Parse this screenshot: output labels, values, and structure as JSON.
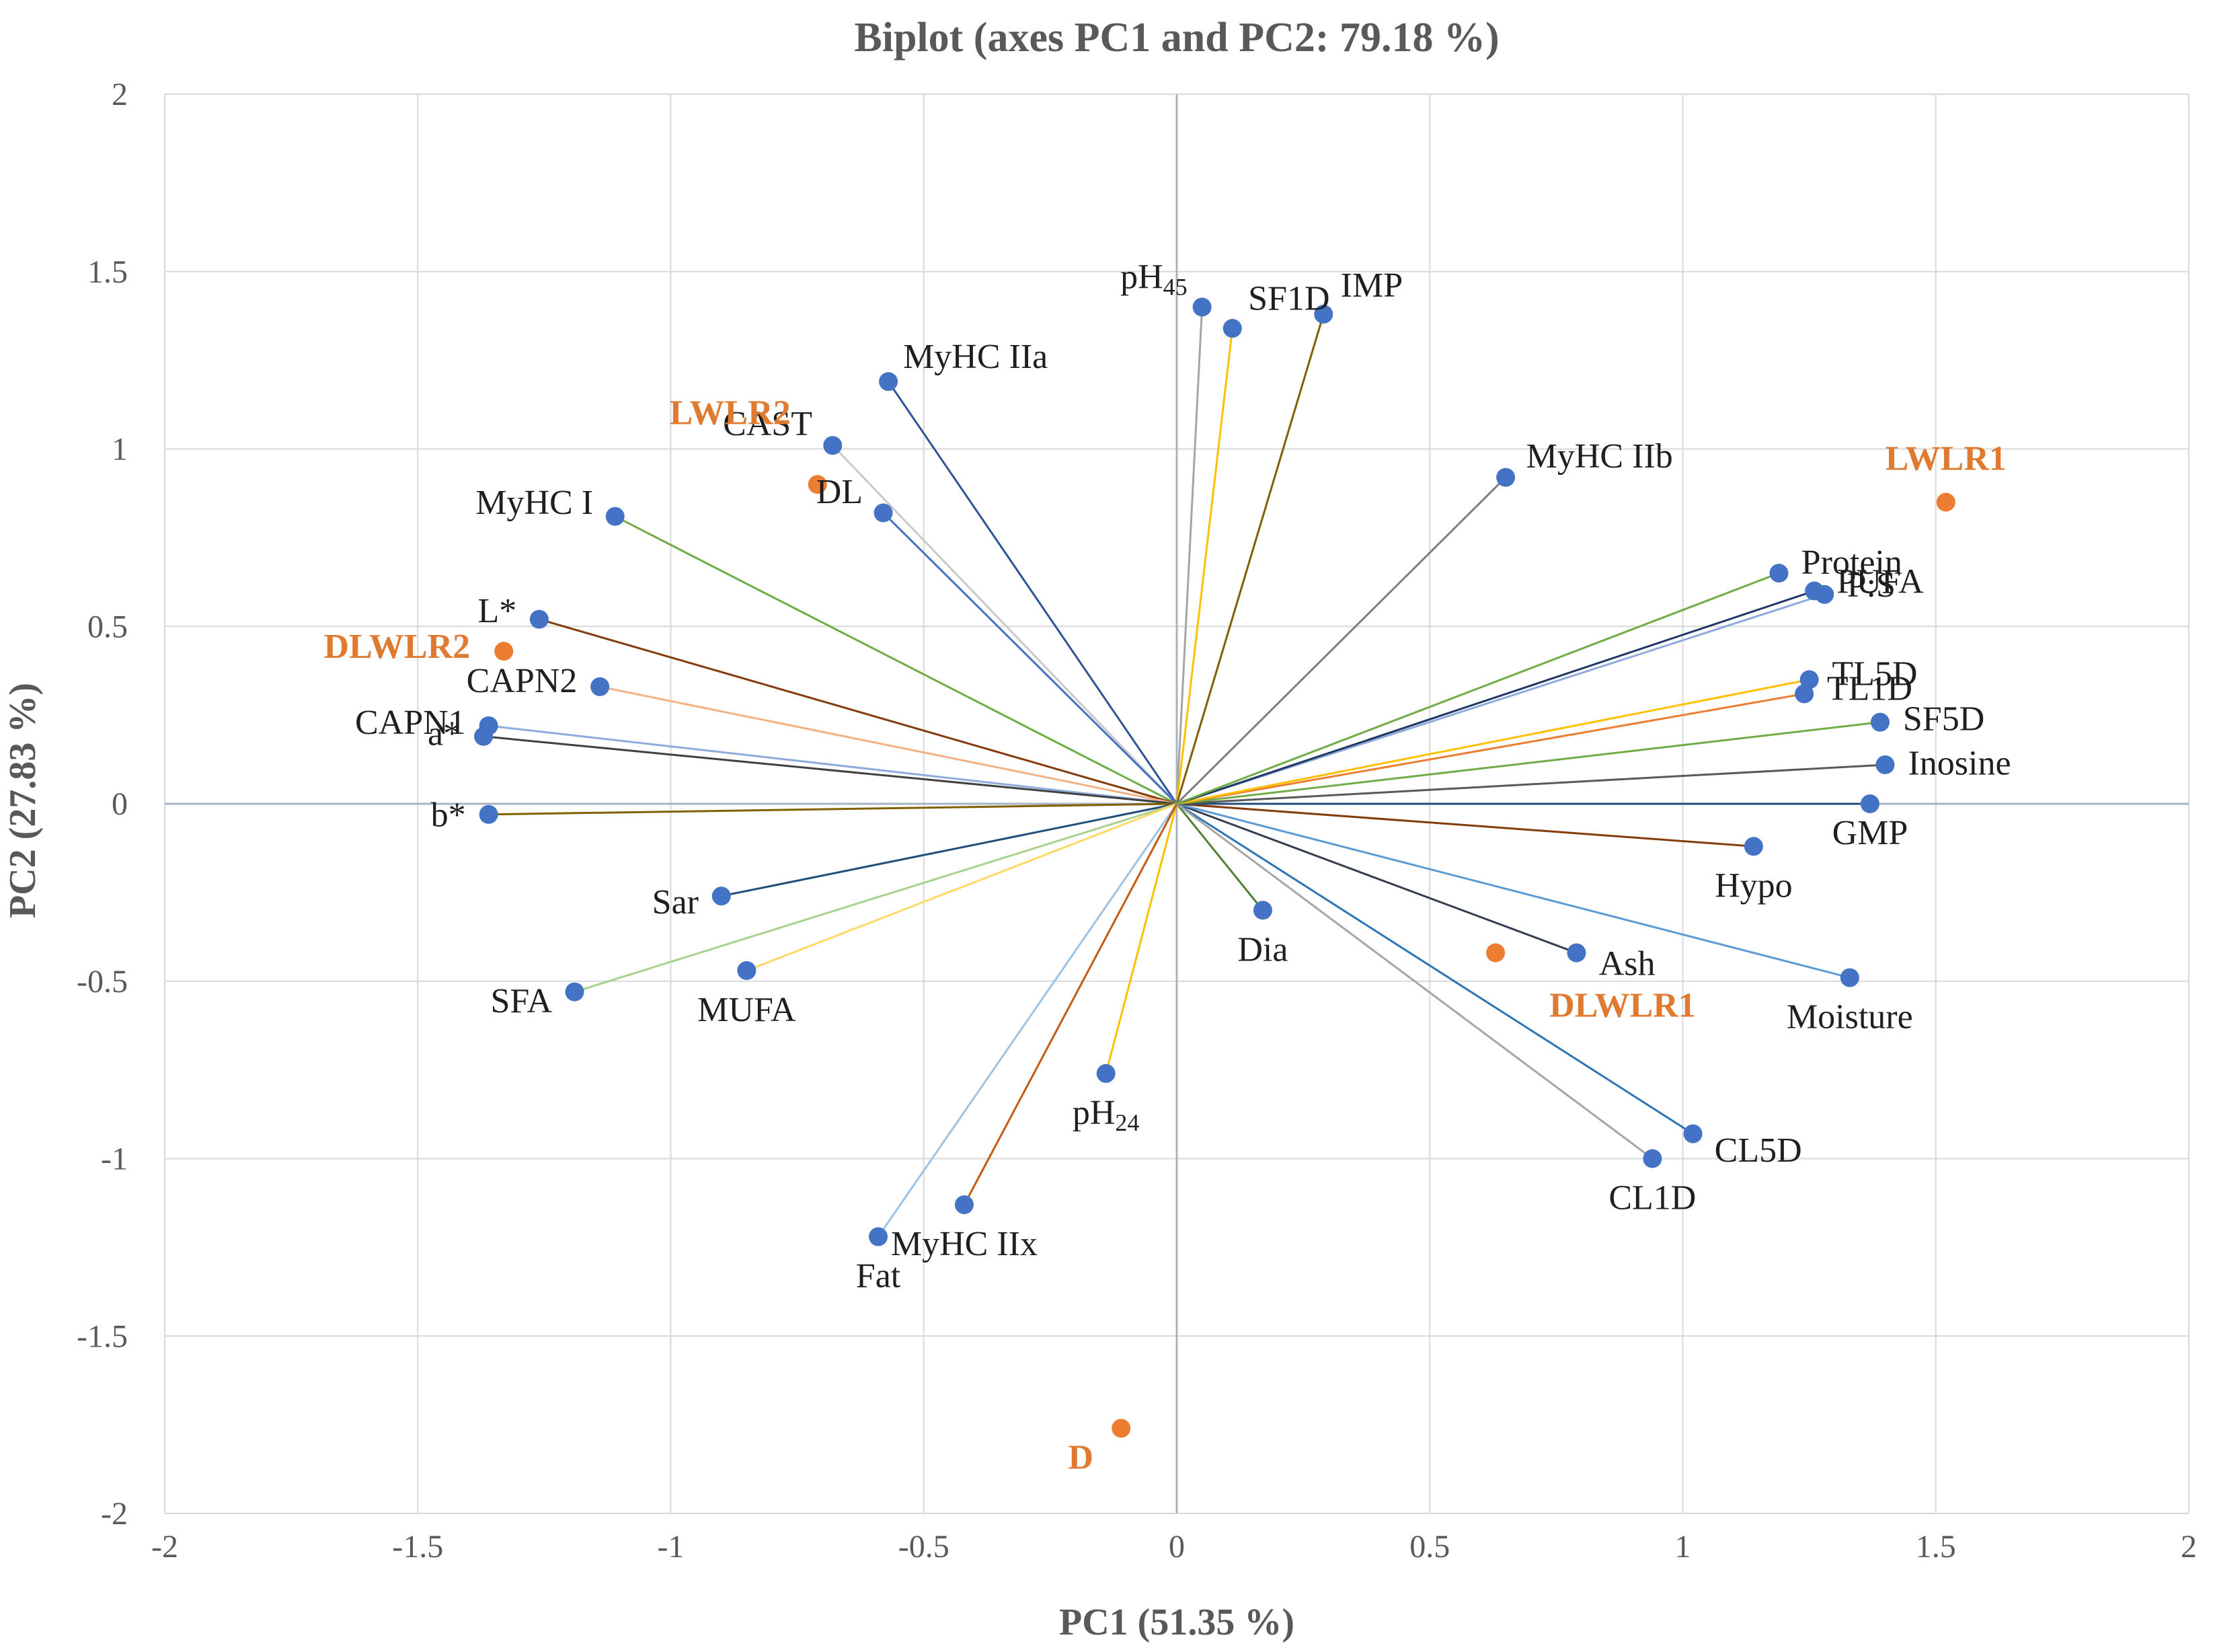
{
  "chart_data": {
    "type": "scatter",
    "title": "Biplot (axes PC1 and PC2: 79.18 %)",
    "xlabel": "PC1 (51.35 %)",
    "ylabel": "PC2 (27.83 %)",
    "xlim": [
      -2,
      2
    ],
    "ylim": [
      -2,
      2
    ],
    "x_ticks": [
      -2,
      -1.5,
      -1,
      -0.5,
      0,
      0.5,
      1,
      1.5,
      2
    ],
    "y_ticks": [
      -2,
      -1.5,
      -1,
      -0.5,
      0,
      0.5,
      1,
      1.5,
      2
    ],
    "x_tick_labels": [
      "-2",
      "-1.5",
      "-1",
      "-0.5",
      "0",
      "0.5",
      "1",
      "1.5",
      "2"
    ],
    "y_tick_labels": [
      "-2",
      "-1.5",
      "-1",
      "-0.5",
      "0",
      "0.5",
      "1",
      "1.5",
      "2"
    ],
    "grid": true,
    "series": [
      {
        "name": "Variables",
        "marker_color": "#4472c4",
        "points": [
          {
            "label": "pH",
            "label_sub": "45",
            "x": 0.05,
            "y": 1.4,
            "line_color": "#a5a5a5",
            "anchor": "end"
          },
          {
            "label": "SF1D",
            "x": 0.11,
            "y": 1.34,
            "line_color": "#ffc000",
            "anchor": "start"
          },
          {
            "label": "IMP",
            "x": 0.29,
            "y": 1.38,
            "line_color": "#806000",
            "anchor": "start"
          },
          {
            "label": "MyHC IIa",
            "x": -0.57,
            "y": 1.19,
            "line_color": "#2f5597",
            "anchor": "start"
          },
          {
            "label": "CAST",
            "x": -0.68,
            "y": 1.01,
            "line_color": "#c9c9c9",
            "anchor": "end"
          },
          {
            "label": "DL",
            "x": -0.58,
            "y": 0.82,
            "line_color": "#4472c4",
            "anchor": "end"
          },
          {
            "label": "MyHC IIb",
            "x": 0.65,
            "y": 0.92,
            "line_color": "#7f7f7f",
            "anchor": "start"
          },
          {
            "label": "MyHC I",
            "x": -1.11,
            "y": 0.81,
            "line_color": "#70ad47",
            "anchor": "end"
          },
          {
            "label": "L*",
            "x": -1.26,
            "y": 0.52,
            "line_color": "#843c0c",
            "anchor": "end"
          },
          {
            "label": "CAPN2",
            "x": -1.14,
            "y": 0.33,
            "line_color": "#f4b183",
            "anchor": "end"
          },
          {
            "label": "CAPN1",
            "x": -1.36,
            "y": 0.22,
            "line_color": "#8faadc",
            "anchor": "end"
          },
          {
            "label": "a*",
            "x": -1.37,
            "y": 0.19,
            "line_color": "#404040",
            "anchor": "end"
          },
          {
            "label": "b*",
            "x": -1.36,
            "y": -0.03,
            "line_color": "#806000",
            "anchor": "end"
          },
          {
            "label": "Sar",
            "x": -0.9,
            "y": -0.26,
            "line_color": "#1f4e79",
            "anchor": "end"
          },
          {
            "label": "SFA",
            "x": -1.19,
            "y": -0.53,
            "line_color": "#a9d18e",
            "anchor": "end"
          },
          {
            "label": "MUFA",
            "x": -0.85,
            "y": -0.47,
            "line_color": "#ffd966",
            "anchor": "middle"
          },
          {
            "label": "pH",
            "label_sub": "24",
            "x": -0.14,
            "y": -0.76,
            "line_color": "#ffc000",
            "anchor": "middle"
          },
          {
            "label": "Fat",
            "x": -0.59,
            "y": -1.22,
            "line_color": "#9dc3e6",
            "anchor": "middle"
          },
          {
            "label": "MyHC IIx",
            "x": -0.42,
            "y": -1.13,
            "line_color": "#c55a11",
            "anchor": "middle"
          },
          {
            "label": "Dia",
            "x": 0.17,
            "y": -0.3,
            "line_color": "#548235",
            "anchor": "middle"
          },
          {
            "label": "Ash",
            "x": 0.79,
            "y": -0.42,
            "line_color": "#333f50",
            "anchor": "start"
          },
          {
            "label": "CL5D",
            "x": 1.02,
            "y": -0.93,
            "line_color": "#2e75b6",
            "anchor": "start"
          },
          {
            "label": "CL1D",
            "x": 0.94,
            "y": -1.0,
            "line_color": "#a6a6a6",
            "anchor": "middle"
          },
          {
            "label": "Moisture",
            "x": 1.33,
            "y": -0.49,
            "line_color": "#5b9bd5",
            "anchor": "middle"
          },
          {
            "label": "Hypo",
            "x": 1.14,
            "y": -0.12,
            "line_color": "#843c0c",
            "anchor": "middle"
          },
          {
            "label": "GMP",
            "x": 1.37,
            "y": 0.0,
            "line_color": "#1f4e79",
            "anchor": "middle"
          },
          {
            "label": "Inosine",
            "x": 1.4,
            "y": 0.11,
            "line_color": "#595959",
            "anchor": "start"
          },
          {
            "label": "SF5D",
            "x": 1.39,
            "y": 0.23,
            "line_color": "#70ad47",
            "anchor": "start"
          },
          {
            "label": "TL1D",
            "x": 1.24,
            "y": 0.31,
            "line_color": "#ed7d31",
            "anchor": "start"
          },
          {
            "label": "TL5D",
            "x": 1.25,
            "y": 0.35,
            "line_color": "#ffc000",
            "anchor": "start"
          },
          {
            "label": "P:S",
            "x": 1.28,
            "y": 0.59,
            "line_color": "#8faadc",
            "anchor": "start"
          },
          {
            "label": "PUFA",
            "x": 1.26,
            "y": 0.6,
            "line_color": "#203864",
            "anchor": "start"
          },
          {
            "label": "Protein",
            "x": 1.19,
            "y": 0.65,
            "line_color": "#70ad47",
            "anchor": "start"
          }
        ]
      },
      {
        "name": "Observations",
        "marker_color": "#ed7d31",
        "points": [
          {
            "label": "LWLR1",
            "x": 1.52,
            "y": 0.85
          },
          {
            "label": "LWLR2",
            "x": -0.71,
            "y": 0.9
          },
          {
            "label": "DLWLR2",
            "x": -1.33,
            "y": 0.43
          },
          {
            "label": "DLWLR1",
            "x": 0.63,
            "y": -0.42
          },
          {
            "label": "D",
            "x": -0.11,
            "y": -1.76
          }
        ]
      }
    ]
  }
}
